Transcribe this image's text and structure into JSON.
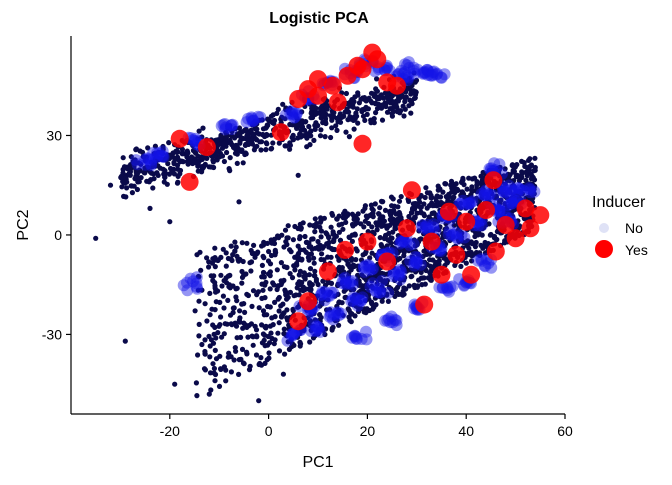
{
  "chart_data": {
    "type": "scatter",
    "title": "Logistic PCA",
    "xlabel": "PC1",
    "ylabel": "PC2",
    "xlim": [
      -40,
      60
    ],
    "ylim": [
      -54,
      60
    ],
    "xticks": [
      -20,
      0,
      20,
      40,
      60
    ],
    "yticks": [
      -30,
      0,
      30
    ],
    "xtick_labels": [
      "-20",
      "0",
      "20",
      "40",
      "60"
    ],
    "ytick_labels": [
      "-30",
      "0",
      "30"
    ],
    "grid": false,
    "legend": {
      "title": "Inducer",
      "placement": "right",
      "entries": [
        {
          "label": "No",
          "color": "#dfe2f6"
        },
        {
          "label": "Yes",
          "color": "#ff0000"
        }
      ]
    },
    "colors": {
      "background_points": "#0a0a4a",
      "inducer_no": "#1414e6",
      "inducer_yes": "#ff0000"
    },
    "series": [
      {
        "name": "Yes",
        "color": "#ff0000",
        "points": [
          [
            -18,
            29
          ],
          [
            -12.5,
            26.5
          ],
          [
            -16,
            16
          ],
          [
            2.5,
            31
          ],
          [
            19,
            27.5
          ],
          [
            29,
            13.5
          ],
          [
            15.5,
            -4.5
          ],
          [
            31.5,
            -21
          ],
          [
            45.5,
            16.5
          ],
          [
            36.5,
            7
          ],
          [
            40,
            4
          ],
          [
            44,
            7.5
          ],
          [
            48,
            3
          ],
          [
            52,
            8
          ],
          [
            6,
            -26
          ],
          [
            8,
            -20
          ],
          [
            12,
            -11
          ],
          [
            20,
            -2
          ],
          [
            24,
            -8
          ],
          [
            28,
            2
          ],
          [
            35,
            -12
          ],
          [
            41,
            -12
          ],
          [
            46,
            -5
          ],
          [
            50,
            -1
          ],
          [
            53,
            2
          ],
          [
            55,
            6
          ],
          [
            38,
            -6
          ],
          [
            33,
            -2
          ],
          [
            8,
            44
          ],
          [
            10,
            47
          ],
          [
            13,
            45
          ],
          [
            16,
            48
          ],
          [
            19,
            50
          ],
          [
            22,
            53
          ],
          [
            24,
            46
          ],
          [
            26,
            45
          ],
          [
            21,
            55
          ],
          [
            18,
            51
          ],
          [
            10,
            42
          ],
          [
            14,
            40
          ],
          [
            6,
            41
          ]
        ]
      },
      {
        "name": "No",
        "color": "#1414e6",
        "points": [
          [
            -25,
            22
          ],
          [
            -22,
            24
          ],
          [
            -15,
            28
          ],
          [
            -8,
            33
          ],
          [
            -3,
            35
          ],
          [
            5,
            37
          ],
          [
            8,
            42
          ],
          [
            12,
            46
          ],
          [
            17,
            49
          ],
          [
            20,
            52
          ],
          [
            23,
            50
          ],
          [
            27,
            48
          ],
          [
            29,
            50
          ],
          [
            32,
            49
          ],
          [
            34,
            48
          ],
          [
            5,
            -30
          ],
          [
            10,
            -28
          ],
          [
            14,
            -24
          ],
          [
            18,
            -20
          ],
          [
            22,
            -16
          ],
          [
            26,
            -12
          ],
          [
            30,
            -8
          ],
          [
            34,
            -4
          ],
          [
            38,
            0
          ],
          [
            42,
            4
          ],
          [
            46,
            8
          ],
          [
            50,
            10
          ],
          [
            52,
            14
          ],
          [
            8,
            -22
          ],
          [
            12,
            -18
          ],
          [
            16,
            -14
          ],
          [
            20,
            -10
          ],
          [
            24,
            -6
          ],
          [
            28,
            -2
          ],
          [
            32,
            2
          ],
          [
            36,
            6
          ],
          [
            40,
            10
          ],
          [
            44,
            12
          ],
          [
            48,
            4
          ],
          [
            44,
            -8
          ],
          [
            40,
            -14
          ],
          [
            36,
            -16
          ],
          [
            30,
            -22
          ],
          [
            25,
            -26
          ],
          [
            18,
            -30
          ],
          [
            48,
            14
          ],
          [
            45,
            20
          ],
          [
            -15,
            -15
          ]
        ]
      }
    ],
    "background_cloud": {
      "color": "#0a0a4a",
      "upper_band": {
        "x_range": [
          -30,
          30
        ],
        "y_center_at_min_x": 18,
        "slope": 0.42,
        "spread": 9
      },
      "lower_band": {
        "x_range": [
          -15,
          54
        ],
        "y_upper_at_min_x": -5,
        "slope": 0.75,
        "width": 38
      },
      "outliers": [
        [
          -35,
          -1
        ],
        [
          -29,
          -32
        ],
        [
          -19,
          -45
        ],
        [
          -12,
          -48
        ],
        [
          -2,
          -50
        ],
        [
          -28,
          18
        ],
        [
          -32,
          15
        ],
        [
          -24,
          8
        ],
        [
          -20,
          4
        ],
        [
          -8,
          20
        ],
        [
          -6,
          10
        ],
        [
          0,
          -5
        ],
        [
          6,
          18
        ],
        [
          36,
          2
        ],
        [
          3,
          -42
        ]
      ]
    }
  }
}
